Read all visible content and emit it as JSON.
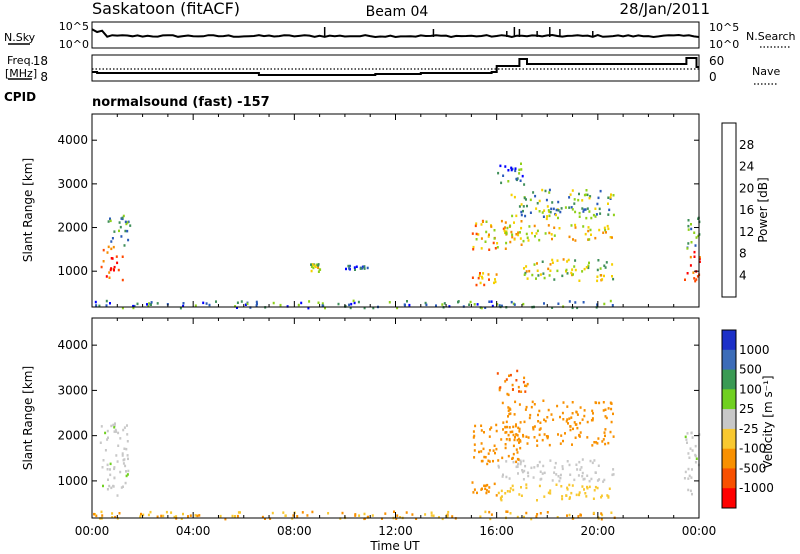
{
  "header": {
    "station": "Saskatoon (fitACF)",
    "beam": "Beam 04",
    "date": "28/Jan/2011"
  },
  "top_panels": {
    "nsky_label": "N.Sky",
    "nsky_ticks": [
      "10^5",
      "10^0"
    ],
    "nsearch_label": "N.Search",
    "nsearch_ticks": [
      "10^5",
      "10^0"
    ],
    "freq_label_1": "Freq.",
    "freq_label_2": "[MHz]",
    "freq_ticks": [
      "18",
      "8"
    ],
    "nave_label": "Nave",
    "nave_ticks": [
      "60",
      "0"
    ],
    "cpid_label": "CPID",
    "cpid_text": "normalsound (fast) -157"
  },
  "chart_data": [
    {
      "type": "heatmap",
      "name": "power",
      "xlabel": "",
      "ylabel": "Slant Range [km]",
      "x_range": [
        0,
        24
      ],
      "y_range": [
        180,
        4600
      ],
      "y_ticks": [
        1000,
        2000,
        3000,
        4000
      ],
      "colorbar": {
        "label": "Power [dB]",
        "tick_labels": [
          "4",
          "8",
          "12",
          "16",
          "20",
          "24",
          "28"
        ],
        "colors": [
          "#0000ff",
          "#2a5ab8",
          "#3f8f5a",
          "#8fd01a",
          "#f5d000",
          "#f58c00",
          "#ff4800",
          "#ff0000"
        ]
      },
      "regions": [
        {
          "t0": 0.3,
          "t1": 1.2,
          "r0": 800,
          "r1": 1600,
          "v": 26
        },
        {
          "t0": 0.5,
          "t1": 1.5,
          "r0": 1600,
          "r1": 2300,
          "v": 10
        },
        {
          "t0": 0.0,
          "t1": 20.7,
          "r0": 180,
          "r1": 350,
          "v": 8
        },
        {
          "t0": 15.0,
          "t1": 16.0,
          "r0": 700,
          "r1": 1000,
          "v": 22
        },
        {
          "t0": 15.0,
          "t1": 17.0,
          "r0": 1500,
          "r1": 2200,
          "v": 20
        },
        {
          "t0": 16.2,
          "t1": 20.6,
          "r0": 1700,
          "r1": 2100,
          "v": 18
        },
        {
          "t0": 16.5,
          "t1": 20.6,
          "r0": 2200,
          "r1": 2900,
          "v": 12
        },
        {
          "t0": 17.0,
          "t1": 20.6,
          "r0": 800,
          "r1": 1300,
          "v": 16
        },
        {
          "t0": 16.0,
          "t1": 17.2,
          "r0": 2900,
          "r1": 3500,
          "v": 8
        },
        {
          "t0": 23.4,
          "t1": 24.0,
          "r0": 800,
          "r1": 1500,
          "v": 26
        },
        {
          "t0": 23.5,
          "t1": 24.0,
          "r0": 1500,
          "r1": 2300,
          "v": 10
        },
        {
          "t0": 8.6,
          "t1": 9.0,
          "r0": 1000,
          "r1": 1200,
          "v": 16
        },
        {
          "t0": 10.0,
          "t1": 11.0,
          "r0": 1050,
          "r1": 1150,
          "v": 6
        }
      ]
    },
    {
      "type": "heatmap",
      "name": "velocity",
      "xlabel": "Time UT",
      "ylabel": "Slant Range [km]",
      "x_range": [
        0,
        24
      ],
      "x_tick_labels": [
        "00:00",
        "04:00",
        "08:00",
        "12:00",
        "16:00",
        "20:00",
        "00:00"
      ],
      "y_range": [
        180,
        4600
      ],
      "y_ticks": [
        1000,
        2000,
        3000,
        4000
      ],
      "colorbar": {
        "label": "Velocity [m s⁻¹]",
        "tick_labels": [
          "1000",
          "500",
          "100",
          "25",
          "-25",
          "-100",
          "-500",
          "-1000"
        ],
        "colors": [
          "#1c30c8",
          "#3c6cb8",
          "#3a9a54",
          "#70d020",
          "#c8c8c8",
          "#f8c830",
          "#f89000",
          "#f85000",
          "#ff0000"
        ]
      },
      "regions": [
        {
          "t0": 0.3,
          "t1": 1.4,
          "r0": 700,
          "r1": 2300,
          "v": 20
        },
        {
          "t0": 0.0,
          "t1": 20.7,
          "r0": 180,
          "r1": 350,
          "v": -100
        },
        {
          "t0": 15.0,
          "t1": 17.0,
          "r0": 1400,
          "r1": 2300,
          "v": -300
        },
        {
          "t0": 16.2,
          "t1": 20.6,
          "r0": 1800,
          "r1": 2800,
          "v": -400
        },
        {
          "t0": 16.0,
          "t1": 20.6,
          "r0": 1000,
          "r1": 1500,
          "v": 0
        },
        {
          "t0": 16.0,
          "t1": 20.6,
          "r0": 600,
          "r1": 950,
          "v": -60
        },
        {
          "t0": 16.0,
          "t1": 17.2,
          "r0": 2900,
          "r1": 3500,
          "v": -500
        },
        {
          "t0": 23.4,
          "t1": 24.0,
          "r0": 700,
          "r1": 2200,
          "v": 20
        },
        {
          "t0": 15.0,
          "t1": 16.0,
          "r0": 700,
          "r1": 1000,
          "v": -200
        }
      ]
    }
  ]
}
